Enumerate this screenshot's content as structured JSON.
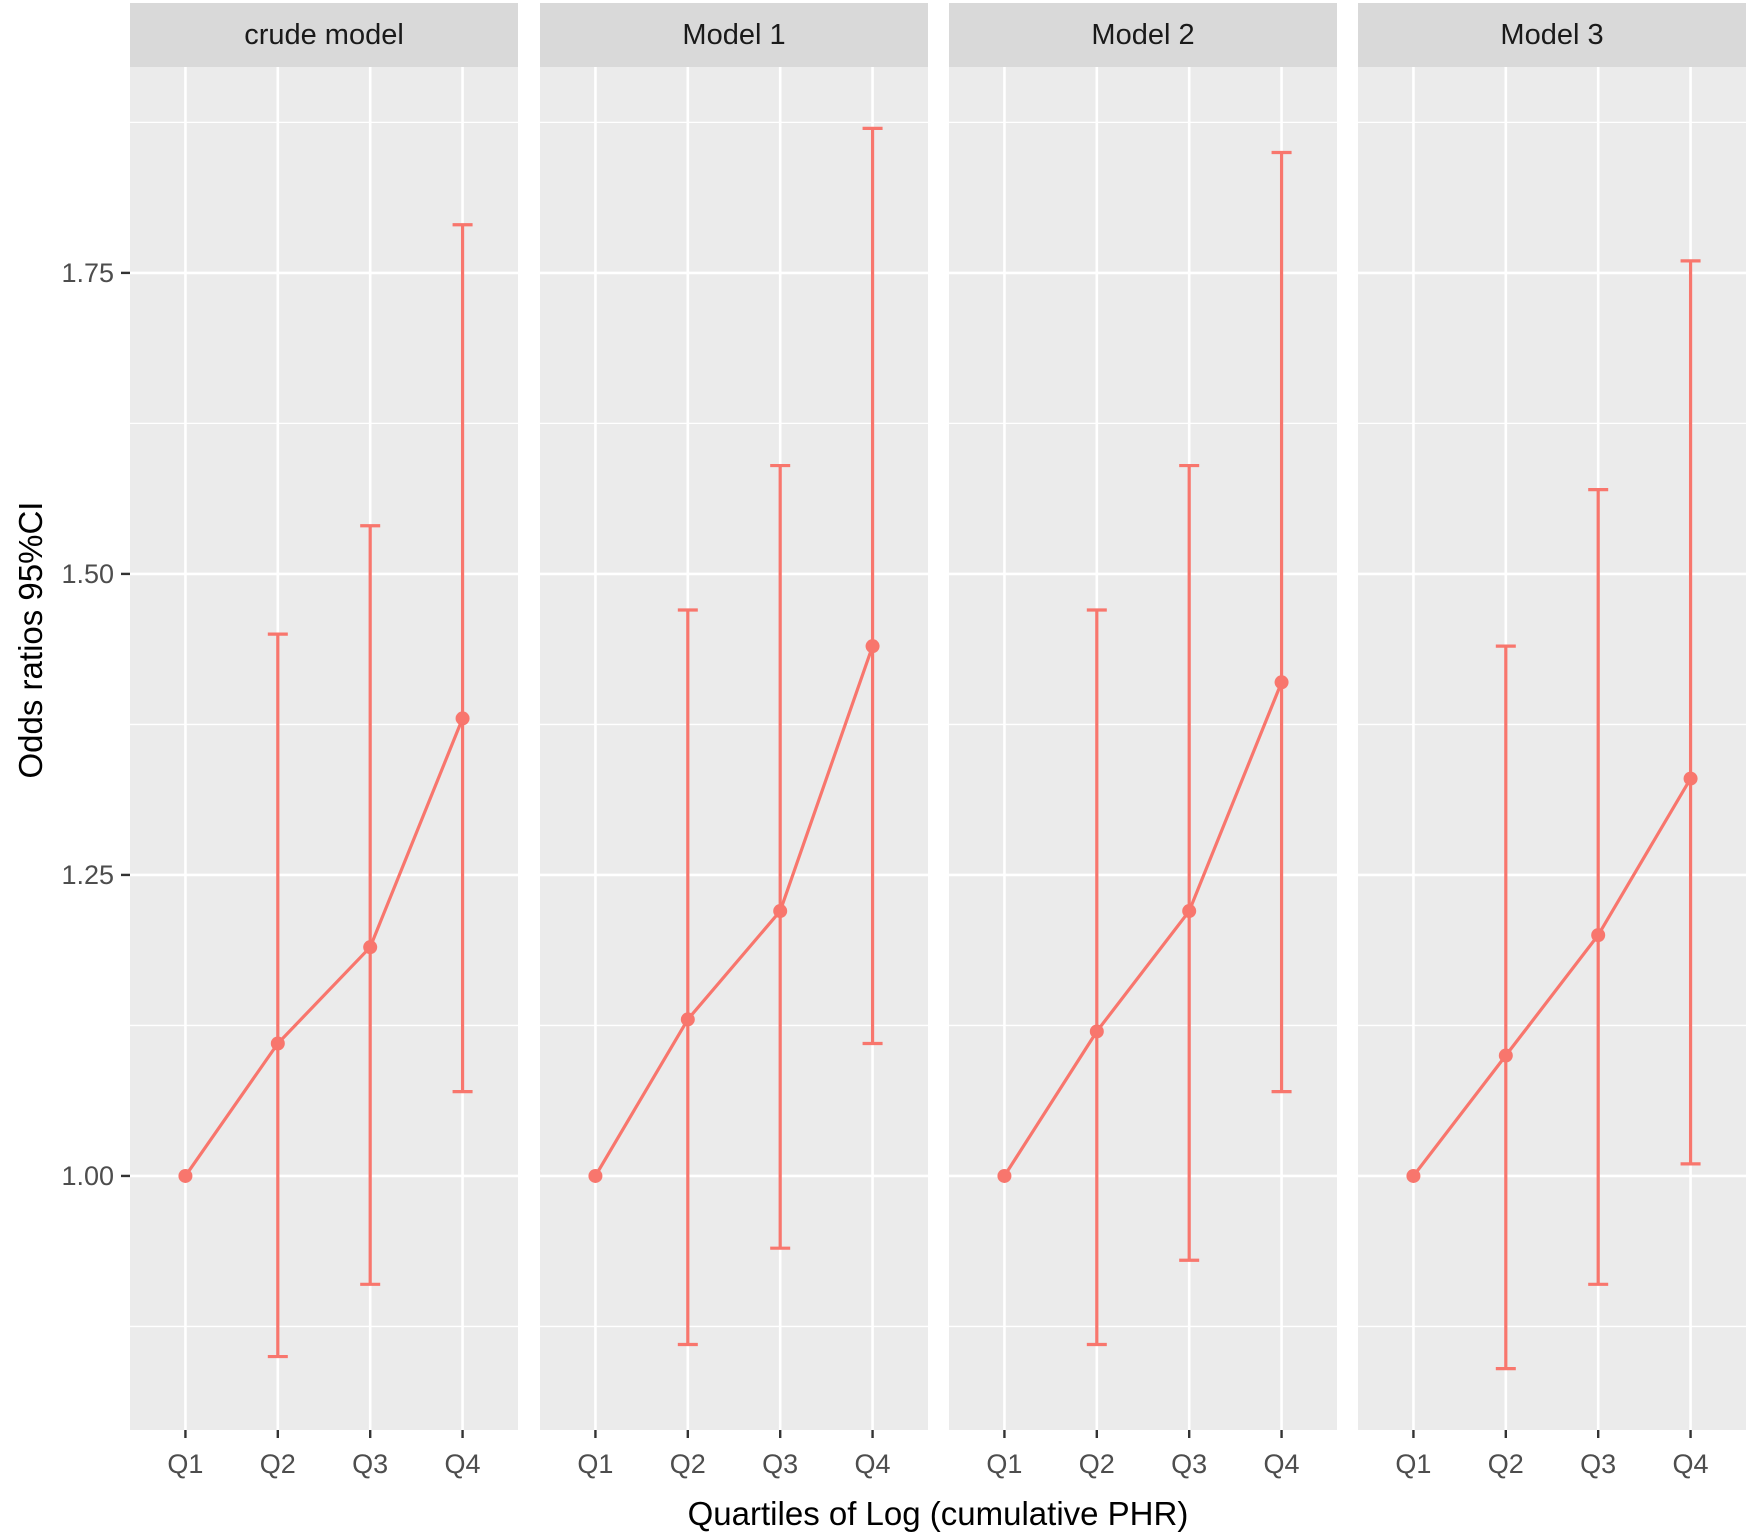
{
  "chart_data": {
    "type": "line",
    "subtype": "faceted point-range with error bars",
    "title": "",
    "xlabel": "Quartiles of Log (cumulative PHR)",
    "ylabel": "Odds ratios 95%CI",
    "categories": [
      "Q1",
      "Q2",
      "Q3",
      "Q4"
    ],
    "y_ticks": [
      1.0,
      1.25,
      1.5,
      1.75
    ],
    "y_tick_labels": [
      "1.00",
      "1.25",
      "1.50",
      "1.75"
    ],
    "ylim": [
      0.789,
      1.921
    ],
    "grid": true,
    "legend": "none",
    "series_color": "#F8766D",
    "facets": [
      {
        "label": "crude model",
        "or": [
          1.0,
          1.11,
          1.19,
          1.38
        ],
        "lower": [
          1.0,
          0.85,
          0.91,
          1.07
        ],
        "upper": [
          1.0,
          1.45,
          1.54,
          1.79
        ]
      },
      {
        "label": "Model 1",
        "or": [
          1.0,
          1.13,
          1.22,
          1.44
        ],
        "lower": [
          1.0,
          0.86,
          0.94,
          1.11
        ],
        "upper": [
          1.0,
          1.47,
          1.59,
          1.87
        ]
      },
      {
        "label": "Model 2",
        "or": [
          1.0,
          1.12,
          1.22,
          1.41
        ],
        "lower": [
          1.0,
          0.86,
          0.93,
          1.07
        ],
        "upper": [
          1.0,
          1.47,
          1.59,
          1.85
        ]
      },
      {
        "label": "Model 3",
        "or": [
          1.0,
          1.1,
          1.2,
          1.33
        ],
        "lower": [
          1.0,
          0.84,
          0.91,
          1.01
        ],
        "upper": [
          1.0,
          1.44,
          1.57,
          1.76
        ]
      }
    ]
  },
  "colors": {
    "panel_bg": "#EBEBEB",
    "strip_bg": "#D9D9D9",
    "grid": "#FFFFFF",
    "series": "#F8766D",
    "tick": "#333333"
  }
}
